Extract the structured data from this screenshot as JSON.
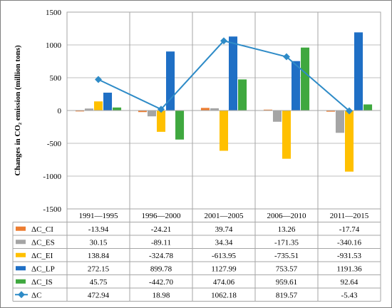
{
  "chart_data": {
    "type": "bar",
    "ylabel": "Changes in CO₂ emission (million tons)",
    "ylim": [
      -1500,
      1500
    ],
    "yticks": [
      1500,
      1000,
      500,
      0,
      -500,
      -1000,
      -1500
    ],
    "categories": [
      "1991—1995",
      "1996—2000",
      "2001—2005",
      "2006—2010",
      "2011—2015"
    ],
    "series": [
      {
        "name": "ΔC_CI",
        "kind": "bar",
        "color": "#ED7D31",
        "values": [
          -13.94,
          -24.21,
          39.74,
          13.26,
          -17.74
        ],
        "labels": [
          "-13.94",
          "-24.21",
          "39.74",
          "13.26",
          "-17.74"
        ]
      },
      {
        "name": "ΔC_ES",
        "kind": "bar",
        "color": "#A5A5A5",
        "values": [
          30.15,
          -89.11,
          34.34,
          -171.35,
          -340.16
        ],
        "labels": [
          "30.15",
          "-89.11",
          "34.34",
          "-171.35",
          "-340.16"
        ]
      },
      {
        "name": "ΔC_EI",
        "kind": "bar",
        "color": "#FFC000",
        "values": [
          138.84,
          -324.78,
          -613.95,
          -735.51,
          -931.53
        ],
        "labels": [
          "138.84",
          "-324.78",
          "-613.95",
          "-735.51",
          "-931.53"
        ]
      },
      {
        "name": "ΔC_LP",
        "kind": "bar",
        "color": "#1F6FC5",
        "values": [
          272.15,
          899.78,
          1127.99,
          753.57,
          1191.36
        ],
        "labels": [
          "272.15",
          "899.78",
          "1127.99",
          "753.57",
          "1191.36"
        ]
      },
      {
        "name": "ΔC_IS",
        "kind": "bar",
        "color": "#3FA83F",
        "values": [
          45.75,
          -442.7,
          474.06,
          959.61,
          92.64
        ],
        "labels": [
          "45.75",
          "-442.70",
          "474.06",
          "959.61",
          "92.64"
        ]
      },
      {
        "name": "ΔC",
        "kind": "line",
        "color": "#2E8BC7",
        "values": [
          472.94,
          18.98,
          1062.18,
          819.57,
          -5.43
        ],
        "labels": [
          "472.94",
          "18.98",
          "1062.18",
          "819.57",
          "-5.43"
        ]
      }
    ],
    "grid": true,
    "legend": "data-table"
  }
}
